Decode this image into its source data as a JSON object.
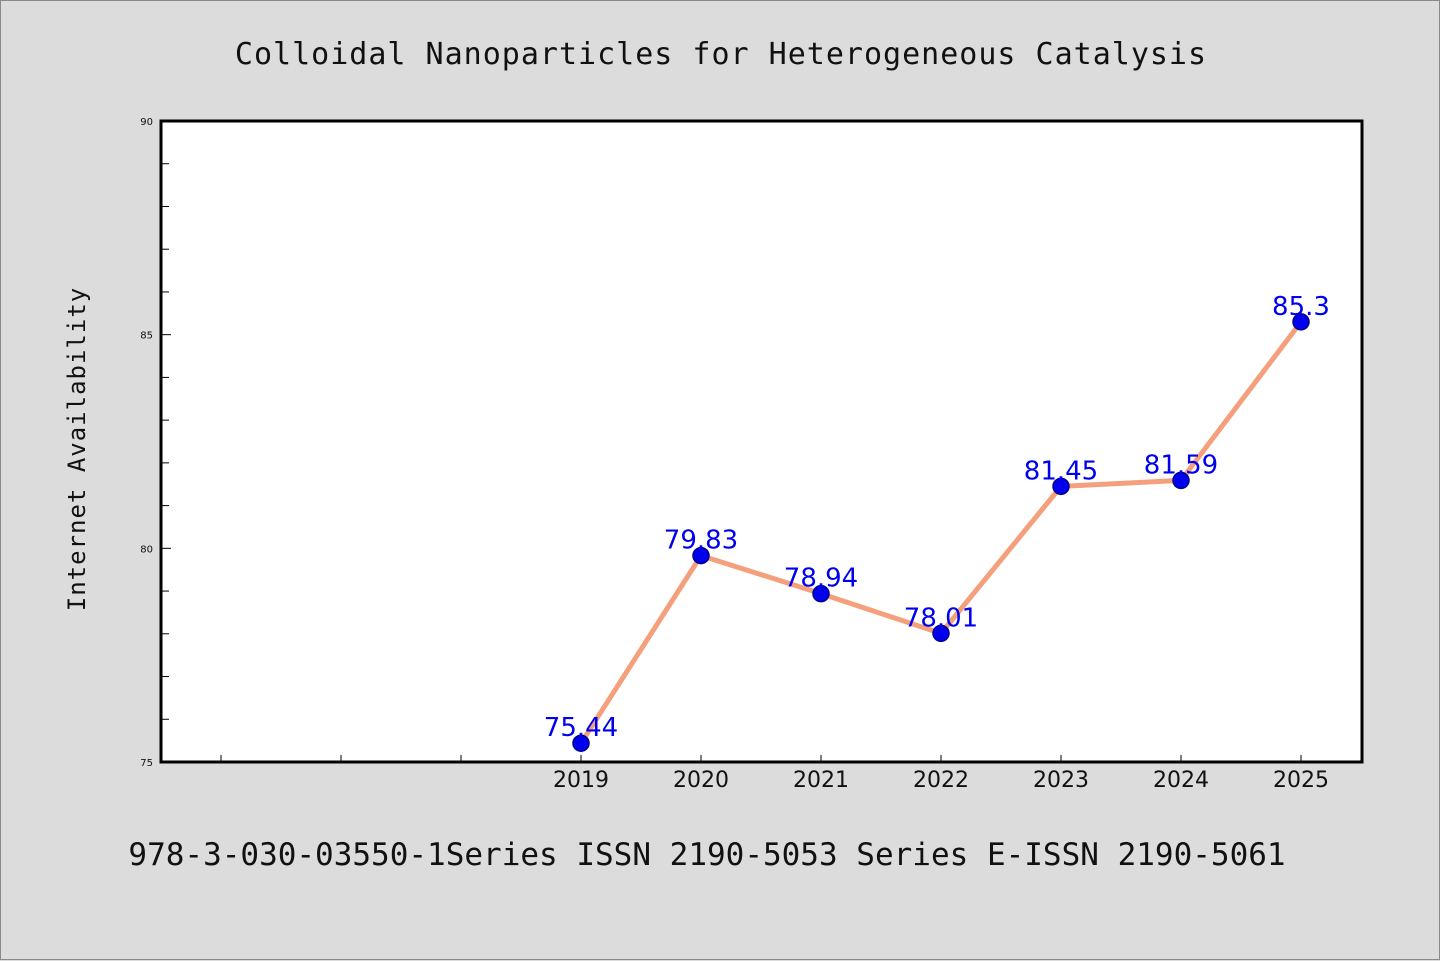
{
  "chart_data": {
    "type": "line",
    "title": "Colloidal Nanoparticles for Heterogeneous Catalysis",
    "xlabel": "",
    "ylabel": "Internet Availability",
    "footer": "978-3-030-03550-1Series ISSN 2190-5053 Series E-ISSN 2190-5061",
    "categories": [
      "2019",
      "2020",
      "2021",
      "2022",
      "2023",
      "2024",
      "2025"
    ],
    "series": [
      {
        "values": [
          75.44,
          79.83,
          78.94,
          78.01,
          81.45,
          81.59,
          85.3
        ],
        "labels": [
          "75.44",
          "79.83",
          "78.94",
          "78.01",
          "81.45",
          "81.59",
          "85.3"
        ]
      }
    ],
    "ylim": [
      75,
      90
    ],
    "yticks": [
      "75",
      "80",
      "85",
      "90"
    ],
    "grid": false,
    "colors": {
      "line": "#f4a07c",
      "marker": "#0000ee",
      "marker_edge": "#00008b",
      "data_label": "#0000ee",
      "plot_bg": "#ffffff",
      "page_bg": "#dcdcdc"
    }
  }
}
